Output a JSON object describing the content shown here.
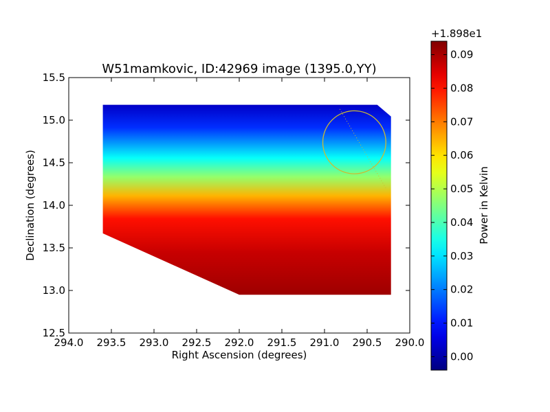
{
  "chart_data": {
    "type": "heatmap",
    "title": "W51mamkovic, ID:42969 image (1395.0,YY)",
    "xlabel": "Right Ascension (degrees)",
    "ylabel": "Declination (degrees)",
    "xlim": [
      294.0,
      290.0
    ],
    "ylim": [
      12.5,
      15.5
    ],
    "x_ticks": [
      294.0,
      293.5,
      293.0,
      292.5,
      292.0,
      291.5,
      291.0,
      290.5,
      290.0
    ],
    "x_tick_labels": [
      "294.0",
      "293.5",
      "293.0",
      "292.5",
      "292.0",
      "291.5",
      "291.0",
      "290.5",
      "290.0"
    ],
    "y_ticks": [
      12.5,
      13.0,
      13.5,
      14.0,
      14.5,
      15.0,
      15.5
    ],
    "y_tick_labels": [
      "12.5",
      "13.0",
      "13.5",
      "14.0",
      "14.5",
      "15.0",
      "15.5"
    ],
    "map_extent": {
      "ra": [
        293.6,
        290.22
      ],
      "dec": [
        12.95,
        15.18
      ]
    },
    "circle": {
      "ra": 290.65,
      "dec": 14.74,
      "radius_dec": 0.37,
      "color": "#ccbb33"
    },
    "dotted_line": {
      "ra": [
        290.82,
        290.28
      ],
      "dec": [
        15.13,
        14.2
      ],
      "color": "#ccbb33"
    },
    "colorbar": {
      "label": "Power in Kelvin",
      "offset_label": "+1.898e1",
      "range": [
        -0.004,
        0.094
      ],
      "ticks": [
        0.0,
        0.01,
        0.02,
        0.03,
        0.04,
        0.05,
        0.06,
        0.07,
        0.08,
        0.09
      ],
      "tick_labels": [
        "0.00",
        "0.01",
        "0.02",
        "0.03",
        "0.04",
        "0.05",
        "0.06",
        "0.07",
        "0.08",
        "0.09"
      ],
      "colormap": "jet"
    }
  }
}
